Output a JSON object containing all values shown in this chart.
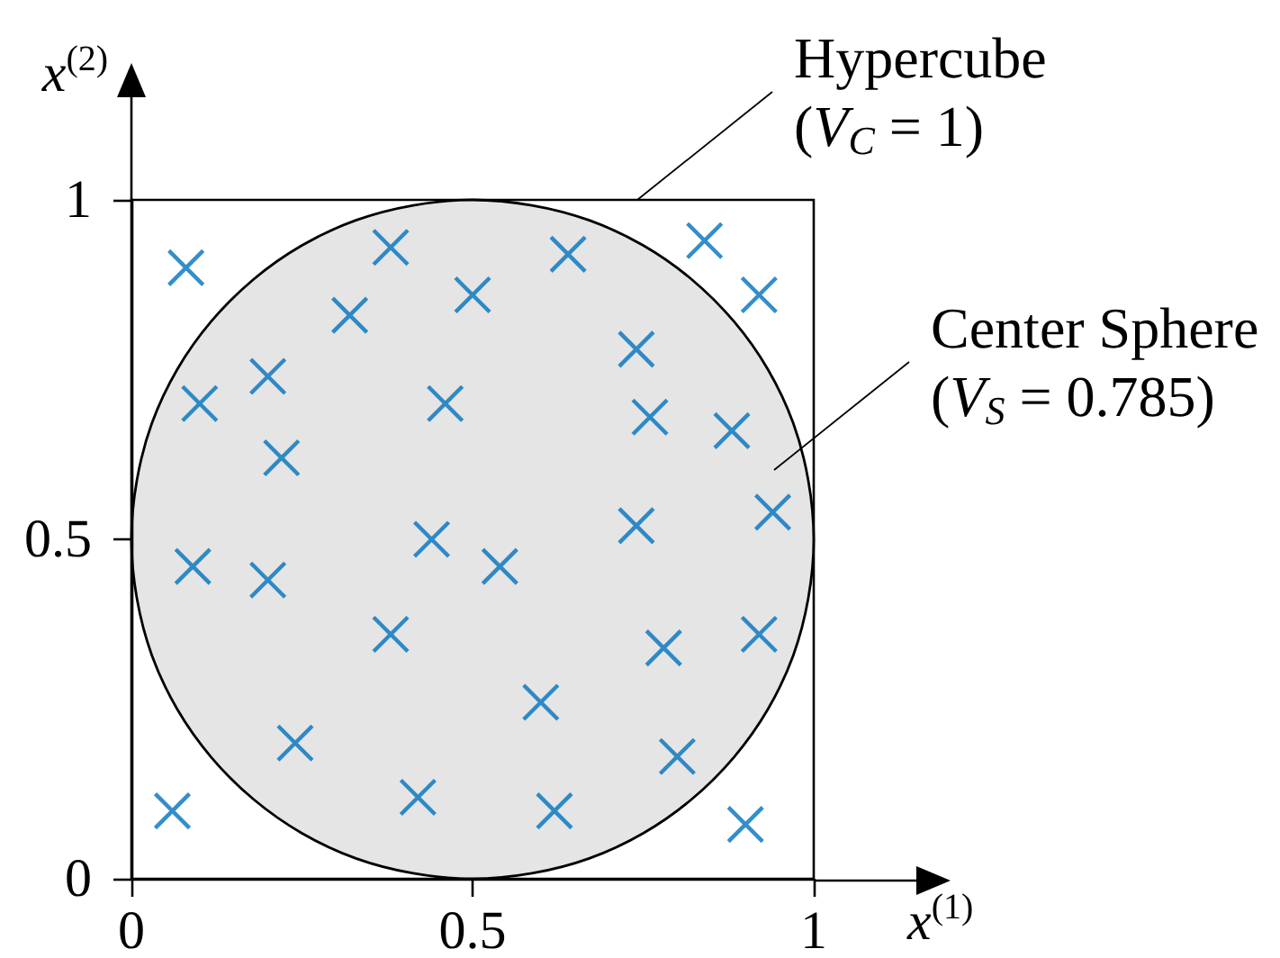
{
  "chart_data": {
    "type": "scatter",
    "xlabel": "x$^{(1)}$",
    "ylabel": "x$^{(2)}$",
    "xlim": [
      0,
      1
    ],
    "ylim": [
      0,
      1
    ],
    "xticks": [
      0,
      0.5,
      1
    ],
    "yticks": [
      0,
      0.5,
      1
    ],
    "annotations": [
      "Hypercube\n(V$_{C}$ = 1)",
      "Center Sphere\n(V$_{S}$ = 0.785)"
    ],
    "series": [
      {
        "type": "area",
        "color": "#e5e5e5",
        "x": [
          1,
          0.992,
          0.97,
          0.933,
          0.883,
          0.821,
          0.75,
          0.671,
          0.587,
          0.5,
          0.413,
          0.329,
          0.25,
          0.179,
          0.117,
          0.067,
          0.03,
          0.008,
          0,
          0.008,
          0.03,
          0.067,
          0.117,
          0.179,
          0.25,
          0.329,
          0.413,
          0.5,
          0.587,
          0.671,
          0.75,
          0.821,
          0.883,
          0.933,
          0.97,
          0.992,
          1
        ],
        "values": [
          0.5,
          0.587,
          0.671,
          0.75,
          0.821,
          0.883,
          0.933,
          0.97,
          0.992,
          1,
          0.992,
          0.97,
          0.933,
          0.883,
          0.821,
          0.75,
          0.671,
          0.587,
          0.5,
          0.413,
          0.329,
          0.25,
          0.179,
          0.117,
          0.067,
          0.03,
          0.008,
          0,
          0.008,
          0.03,
          0.067,
          0.117,
          0.179,
          0.25,
          0.329,
          0.413,
          0.5
        ]
      },
      {
        "color": "#0072bd",
        "marker": "cross",
        "x": [
          0.08,
          0.38,
          0.5,
          0.32,
          0.2,
          0.1,
          0.46,
          0.22,
          0.64,
          0.84,
          0.92,
          0.74,
          0.76,
          0.88,
          0.94,
          0.74,
          0.09,
          0.2,
          0.44,
          0.38,
          0.24,
          0.06,
          0.42,
          0.54,
          0.92,
          0.78,
          0.6,
          0.8,
          0.62,
          0.9
        ],
        "values": [
          0.9,
          0.93,
          0.86,
          0.83,
          0.74,
          0.7,
          0.7,
          0.62,
          0.92,
          0.94,
          0.86,
          0.78,
          0.68,
          0.66,
          0.54,
          0.52,
          0.46,
          0.44,
          0.5,
          0.36,
          0.2,
          0.1,
          0.12,
          0.46,
          0.36,
          0.34,
          0.26,
          0.18,
          0.1,
          0.08
        ]
      }
    ]
  }
}
